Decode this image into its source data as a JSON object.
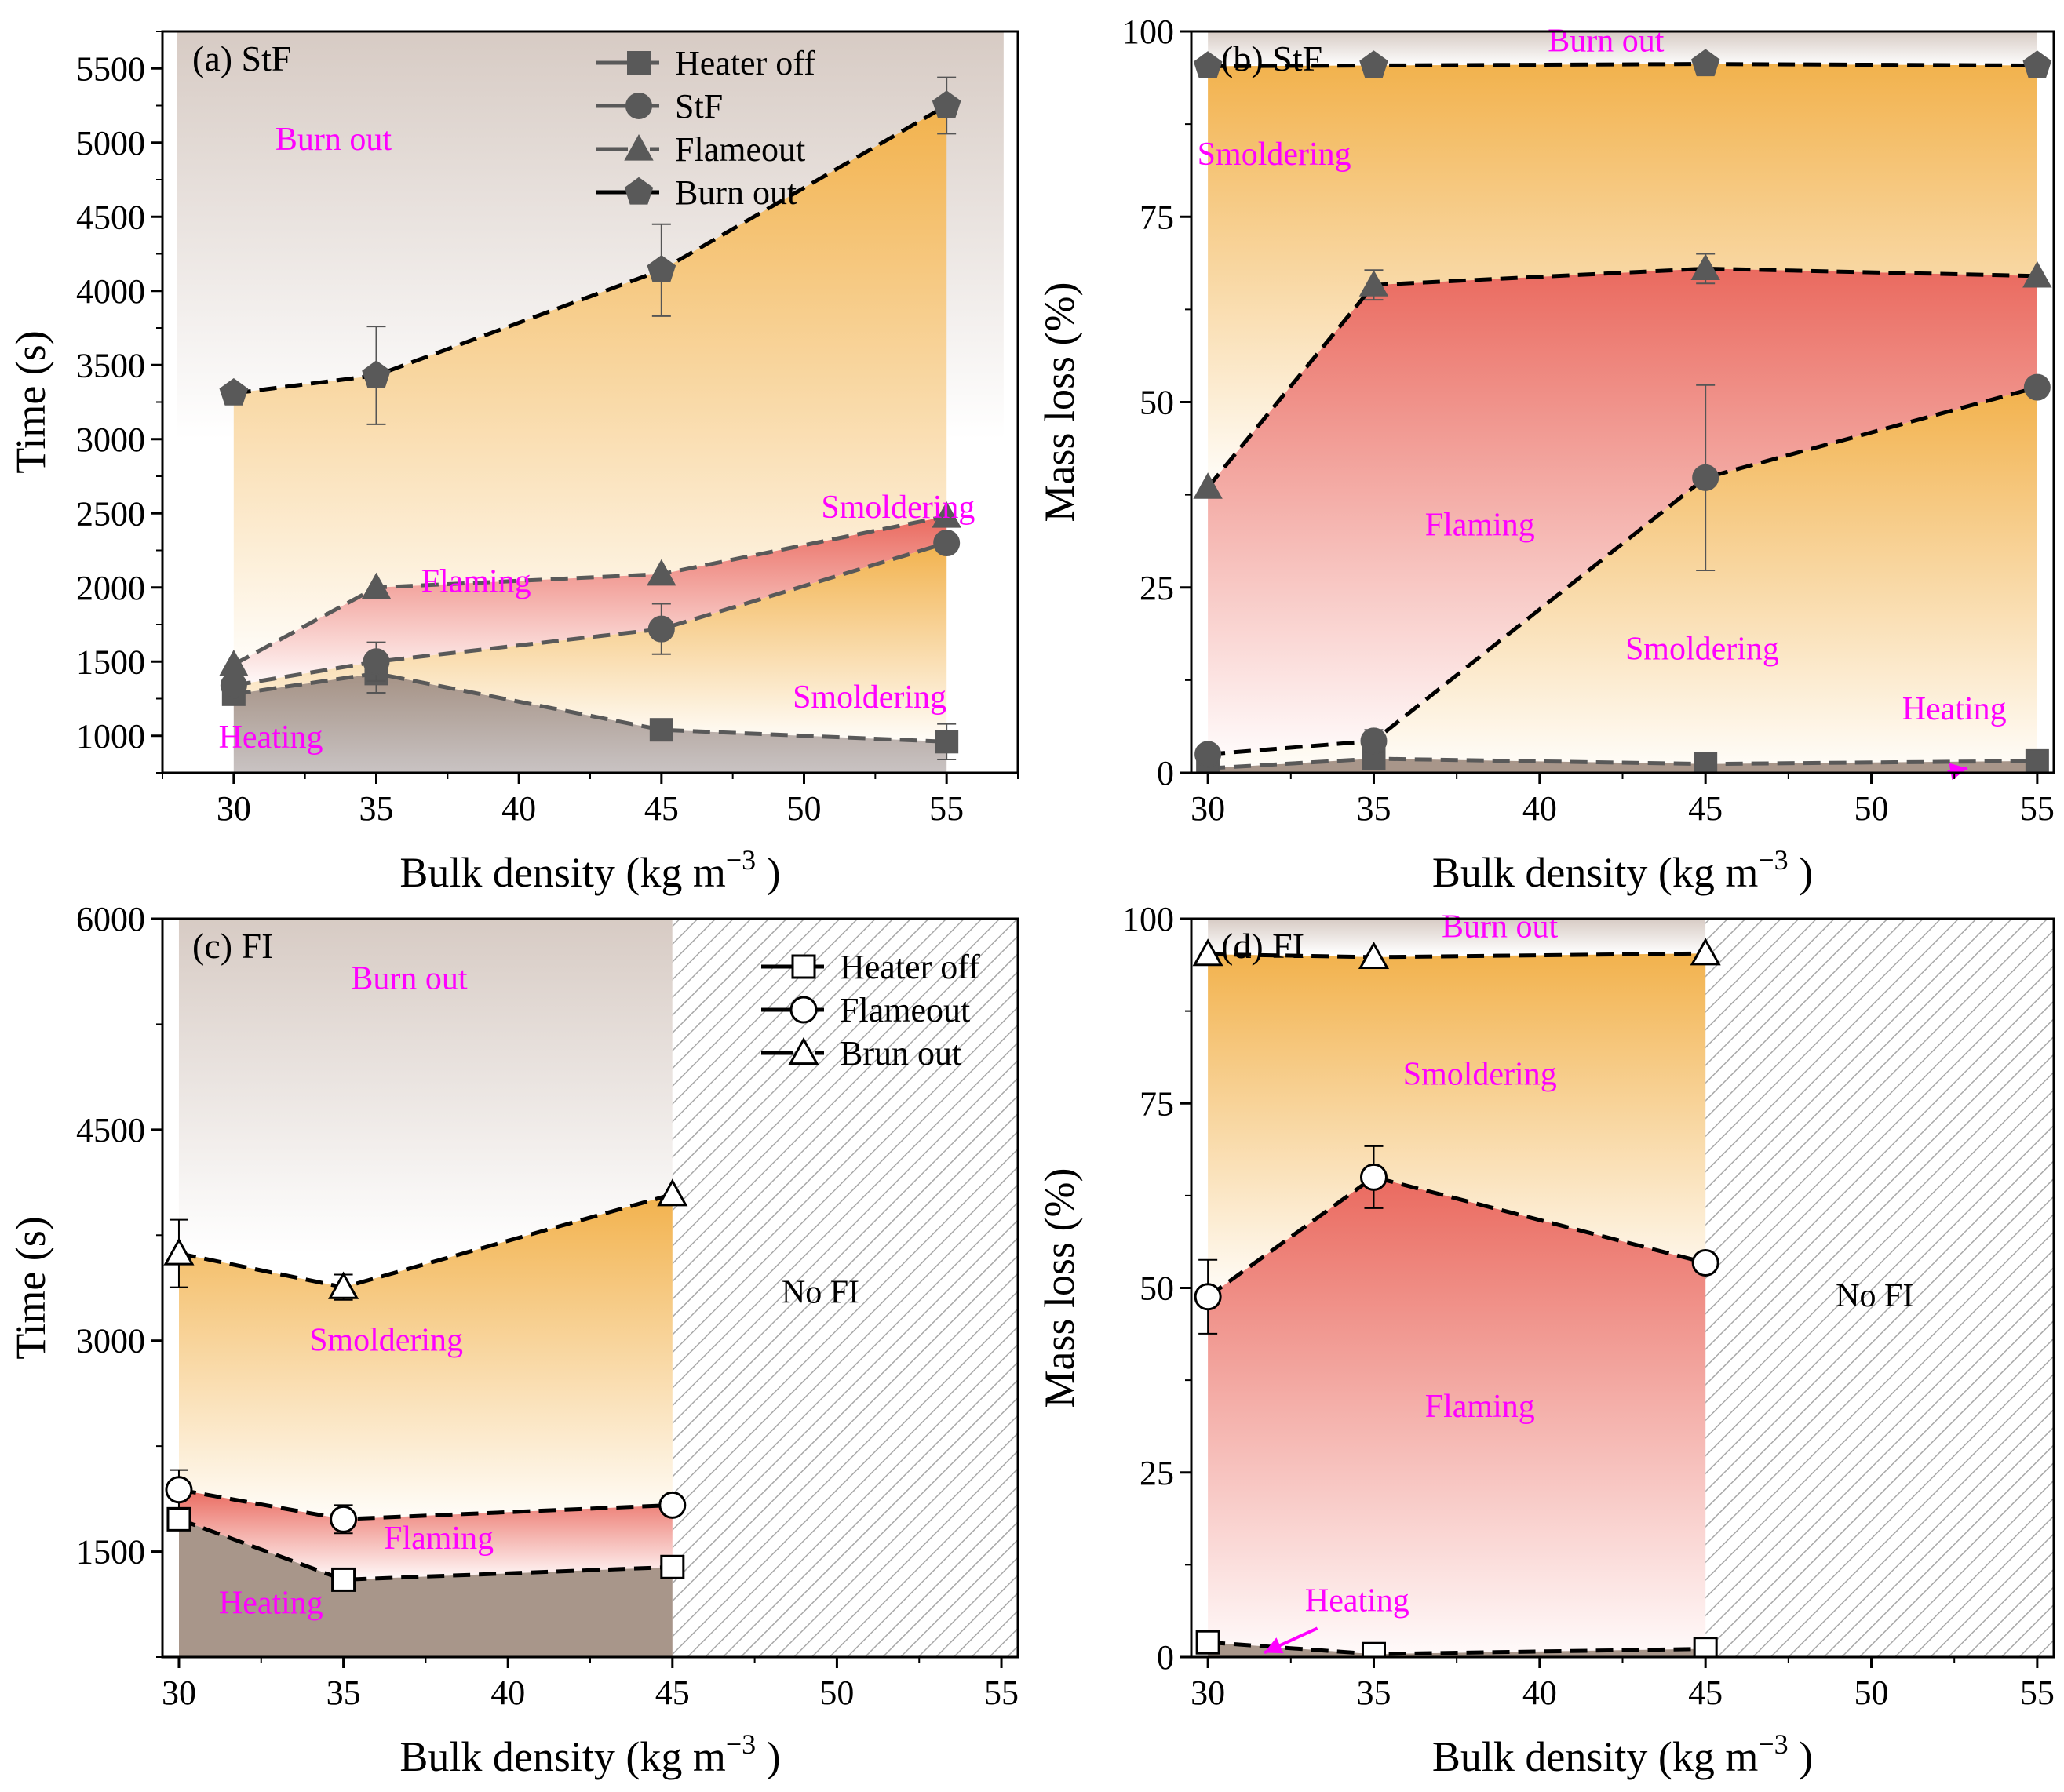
{
  "colors": {
    "stage_label": "#ff00ff",
    "marker_fill": "#595959",
    "orange": "#f2b24d",
    "red": "#ea6a5f",
    "brown": "#a8968a",
    "gray_line": "#595959",
    "black": "#000000"
  },
  "chart_data": [
    {
      "id": "a",
      "type": "line",
      "panel_label": "(a) StF",
      "xlabel": "Bulk density (kg m",
      "xlabel_sup": "−3",
      "xlabel_end": " )",
      "ylabel": "Time (s)",
      "xlim": [
        27.5,
        57.5
      ],
      "ylim": [
        750,
        5750
      ],
      "x_ticks": [
        30,
        35,
        40,
        45,
        50,
        55
      ],
      "y_ticks": [
        1000,
        1500,
        2000,
        2500,
        3000,
        3500,
        4000,
        4500,
        5000,
        5500
      ],
      "x": [
        30,
        35,
        45,
        55
      ],
      "series": [
        {
          "name": "Heater off",
          "marker": "square",
          "filled": true,
          "line": "gray",
          "values": [
            1280,
            1420,
            1040,
            960
          ],
          "errors": [
            0,
            130,
            0,
            120
          ]
        },
        {
          "name": "StF",
          "marker": "circle",
          "filled": true,
          "line": "gray",
          "values": [
            1340,
            1500,
            1720,
            2300
          ],
          "errors": [
            0,
            130,
            170,
            0
          ]
        },
        {
          "name": "Flameout",
          "marker": "triangle",
          "filled": true,
          "line": "gray",
          "values": [
            1480,
            2000,
            2090,
            2480
          ],
          "errors": [
            0,
            0,
            0,
            0
          ]
        },
        {
          "name": "Burn out",
          "marker": "pentagon",
          "filled": true,
          "line": "black",
          "values": [
            3310,
            3430,
            4140,
            5250
          ],
          "errors": [
            0,
            330,
            310,
            190
          ]
        }
      ],
      "fills": [
        {
          "top": "Burn out",
          "bottom": "Flameout",
          "color": "orange"
        },
        {
          "top": "Flameout",
          "bottom": "StF",
          "color": "red"
        },
        {
          "top": "StF",
          "bottom": "Heater off",
          "color": "orange"
        },
        {
          "top": "Heater off",
          "bottom": "axis",
          "color": "brown"
        }
      ],
      "burnout_band_bottom": 3000,
      "regions": [
        {
          "text": "Burn out",
          "x": 33.5,
          "y": 4950
        },
        {
          "text": "Smoldering",
          "x": 53.3,
          "y": 2470
        },
        {
          "text": "Flaming",
          "x": 38.5,
          "y": 1970
        },
        {
          "text": "Smoldering",
          "x": 52.3,
          "y": 1190
        },
        {
          "text": "Heating",
          "x": 31.3,
          "y": 920
        }
      ],
      "legend": {
        "position": "top-right"
      },
      "nofi_from": null
    },
    {
      "id": "b",
      "type": "line",
      "panel_label": "(b) StF",
      "xlabel": "Bulk density (kg m",
      "xlabel_sup": "−3",
      "xlabel_end": " )",
      "ylabel": "Mass loss (%)",
      "xlim": [
        29.5,
        55.5
      ],
      "ylim": [
        0,
        100
      ],
      "x_ticks": [
        30,
        35,
        40,
        45,
        50,
        55
      ],
      "y_ticks": [
        0,
        25,
        50,
        75,
        100
      ],
      "x": [
        30,
        35,
        45,
        55
      ],
      "series": [
        {
          "name": "Heater off",
          "marker": "square",
          "filled": true,
          "line": "gray",
          "values": [
            0.6,
            1.9,
            1.2,
            1.6
          ],
          "errors": [
            0,
            0,
            0,
            0
          ]
        },
        {
          "name": "StF",
          "marker": "circle",
          "filled": true,
          "line": "black",
          "values": [
            2.5,
            4.3,
            39.8,
            52
          ],
          "errors": [
            0,
            1.5,
            12.5,
            0
          ]
        },
        {
          "name": "Flameout",
          "marker": "triangle",
          "filled": true,
          "line": "black",
          "values": [
            38.5,
            65.8,
            68,
            67
          ],
          "errors": [
            0,
            2,
            2,
            0
          ]
        },
        {
          "name": "Burn out",
          "marker": "pentagon",
          "filled": true,
          "line": "black",
          "values": [
            95.3,
            95.4,
            95.6,
            95.4
          ],
          "errors": [
            0,
            0,
            0,
            0
          ]
        }
      ],
      "fills": [
        {
          "top": "Burn out",
          "bottom": "Flameout",
          "color": "orange"
        },
        {
          "top": "Flameout",
          "bottom": "StF",
          "color": "red"
        },
        {
          "top": "StF",
          "bottom": "Heater off",
          "color": "orange"
        },
        {
          "top": "Heater off",
          "bottom": "axis",
          "color": "brown"
        }
      ],
      "burnout_band_bottom": 95.3,
      "regions": [
        {
          "text": "Burn out",
          "x": 42.0,
          "y": 97.3
        },
        {
          "text": "Smoldering",
          "x": 32.0,
          "y": 82
        },
        {
          "text": "Flaming",
          "x": 38.2,
          "y": 32
        },
        {
          "text": "Smoldering",
          "x": 44.9,
          "y": 15.3
        },
        {
          "text": "Heating",
          "x": 52.5,
          "y": 7.2
        }
      ],
      "arrows": [
        {
          "from": [
            52.3,
            0.1
          ],
          "to": [
            52.9,
            0.6
          ]
        }
      ],
      "legend": null,
      "nofi_from": null
    },
    {
      "id": "c",
      "type": "line",
      "panel_label": "(c) FI",
      "xlabel": "Bulk density (kg m",
      "xlabel_sup": "−3",
      "xlabel_end": " )",
      "ylabel": "Time (s)",
      "xlim": [
        29.5,
        55.5
      ],
      "ylim": [
        750,
        6000
      ],
      "x_ticks": [
        30,
        35,
        40,
        45,
        50,
        55
      ],
      "y_ticks": [
        1500,
        3000,
        4500,
        6000
      ],
      "x": [
        30,
        35,
        45
      ],
      "series": [
        {
          "name": "Heater off",
          "marker": "square",
          "filled": false,
          "line": "black",
          "values": [
            1730,
            1300,
            1390
          ],
          "errors": [
            60,
            60,
            0
          ]
        },
        {
          "name": "Flameout",
          "marker": "circle",
          "filled": false,
          "line": "black",
          "values": [
            1940,
            1730,
            1830
          ],
          "errors": [
            140,
            100,
            0
          ]
        },
        {
          "name": "Brun out",
          "marker": "triangle",
          "filled": false,
          "line": "black",
          "values": [
            3620,
            3380,
            4040
          ],
          "errors": [
            240,
            90,
            0
          ]
        }
      ],
      "fills": [
        {
          "top": "Brun out",
          "bottom": "Flameout",
          "color": "orange"
        },
        {
          "top": "Flameout",
          "bottom": "Heater off",
          "color": "red"
        },
        {
          "top": "Heater off",
          "bottom": "axis",
          "color": "brown"
        }
      ],
      "burnout_band_bottom": 3620,
      "regions": [
        {
          "text": "Burn out",
          "x": 37.0,
          "y": 5500
        },
        {
          "text": "Smoldering",
          "x": 36.3,
          "y": 2930
        },
        {
          "text": "Flaming",
          "x": 37.9,
          "y": 1520
        },
        {
          "text": "Heating",
          "x": 32.8,
          "y": 1060
        }
      ],
      "nofi_label": "No FI",
      "nofi_label_pos": {
        "x": 49.5,
        "y": 3270
      },
      "legend": {
        "position": "top-right"
      },
      "nofi_from": 45
    },
    {
      "id": "d",
      "type": "line",
      "panel_label": "(d) FI",
      "xlabel": "Bulk density (kg m",
      "xlabel_sup": "−3",
      "xlabel_end": " )",
      "ylabel": "Mass loss (%)",
      "xlim": [
        29.5,
        55.5
      ],
      "ylim": [
        0,
        100
      ],
      "x_ticks": [
        30,
        35,
        40,
        45,
        50,
        55
      ],
      "y_ticks": [
        0,
        25,
        50,
        75,
        100
      ],
      "x": [
        30,
        35,
        45
      ],
      "series": [
        {
          "name": "Heater off",
          "marker": "square",
          "filled": false,
          "line": "black",
          "values": [
            2,
            0.4,
            1.1
          ],
          "errors": [
            1.5,
            0,
            0
          ]
        },
        {
          "name": "Flameout",
          "marker": "circle",
          "filled": false,
          "line": "black",
          "values": [
            48.8,
            65,
            53.4
          ],
          "errors": [
            5,
            4.2,
            0
          ]
        },
        {
          "name": "Brun out",
          "marker": "triangle",
          "filled": false,
          "line": "black",
          "values": [
            95.2,
            94.8,
            95.3
          ],
          "errors": [
            0,
            0,
            0
          ]
        }
      ],
      "fills": [
        {
          "top": "Brun out",
          "bottom": "Flameout",
          "color": "orange"
        },
        {
          "top": "Flameout",
          "bottom": "Heater off",
          "color": "red"
        },
        {
          "top": "Heater off",
          "bottom": "axis",
          "color": "brown"
        }
      ],
      "burnout_band_bottom": 95.2,
      "regions": [
        {
          "text": "Burn out",
          "x": 38.8,
          "y": 97.5
        },
        {
          "text": "Smoldering",
          "x": 38.2,
          "y": 77.5
        },
        {
          "text": "Flaming",
          "x": 38.2,
          "y": 32.5
        },
        {
          "text": "Heating",
          "x": 34.5,
          "y": 6.2
        }
      ],
      "arrows": [
        {
          "from": [
            33.3,
            3.9
          ],
          "to": [
            31.7,
            0.6
          ]
        }
      ],
      "nofi_label": "No FI",
      "nofi_label_pos": {
        "x": 50.1,
        "y": 47.5
      },
      "legend": null,
      "nofi_from": 45
    }
  ]
}
